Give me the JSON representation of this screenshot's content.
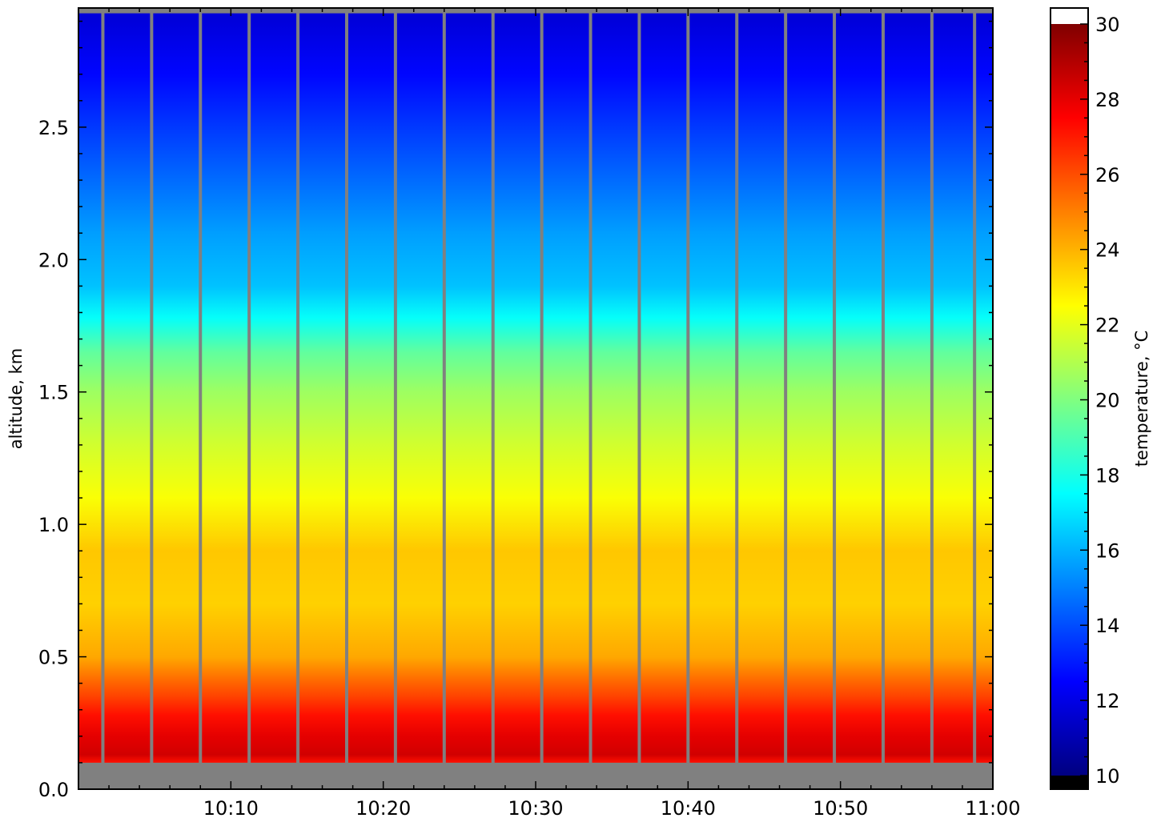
{
  "chart_data": {
    "type": "heatmap",
    "title": "",
    "xlabel": "",
    "ylabel": "altitude, km",
    "colorbar_label": "temperature, °C",
    "colormap": "jet",
    "xlim": [
      "10:00",
      "11:00"
    ],
    "ylim": [
      0.0,
      2.95
    ],
    "clim": [
      10,
      30
    ],
    "x_tick_labels": [
      "10:10",
      "10:20",
      "10:30",
      "10:40",
      "10:50",
      "11:00"
    ],
    "y_tick_labels": [
      "0.0",
      "0.5",
      "1.0",
      "1.5",
      "2.0",
      "2.5"
    ],
    "colorbar_tick_labels": [
      "10",
      "12",
      "14",
      "16",
      "18",
      "20",
      "22",
      "24",
      "26",
      "28",
      "30"
    ],
    "no_data_color": "#808080",
    "over_color": "#ffffff",
    "under_color": "#000000",
    "no_data_below_km": 0.1,
    "no_data_above_km": 2.93,
    "profile_gap_times": [
      "10:01.6",
      "10:04.8",
      "10:08.0",
      "10:11.2",
      "10:14.4",
      "10:17.6",
      "10:20.8",
      "10:24.0",
      "10:27.2",
      "10:30.4",
      "10:33.6",
      "10:36.8",
      "10:40.0",
      "10:43.2",
      "10:46.4",
      "10:49.6",
      "10:52.8",
      "10:56.0",
      "10:58.8"
    ],
    "temperature_profile": {
      "altitude_km": [
        0.1,
        0.13,
        0.2,
        0.28,
        0.35,
        0.42,
        0.5,
        0.7,
        0.9,
        1.1,
        1.3,
        1.5,
        1.65,
        1.78,
        1.9,
        2.1,
        2.3,
        2.5,
        2.7,
        2.9
      ],
      "temperature_c": [
        27.2,
        28.4,
        28.0,
        27.2,
        26.2,
        25.3,
        24.2,
        23.4,
        23.6,
        22.4,
        21.6,
        20.6,
        19.4,
        17.6,
        16.3,
        15.6,
        14.6,
        13.6,
        12.6,
        11.8
      ]
    }
  }
}
